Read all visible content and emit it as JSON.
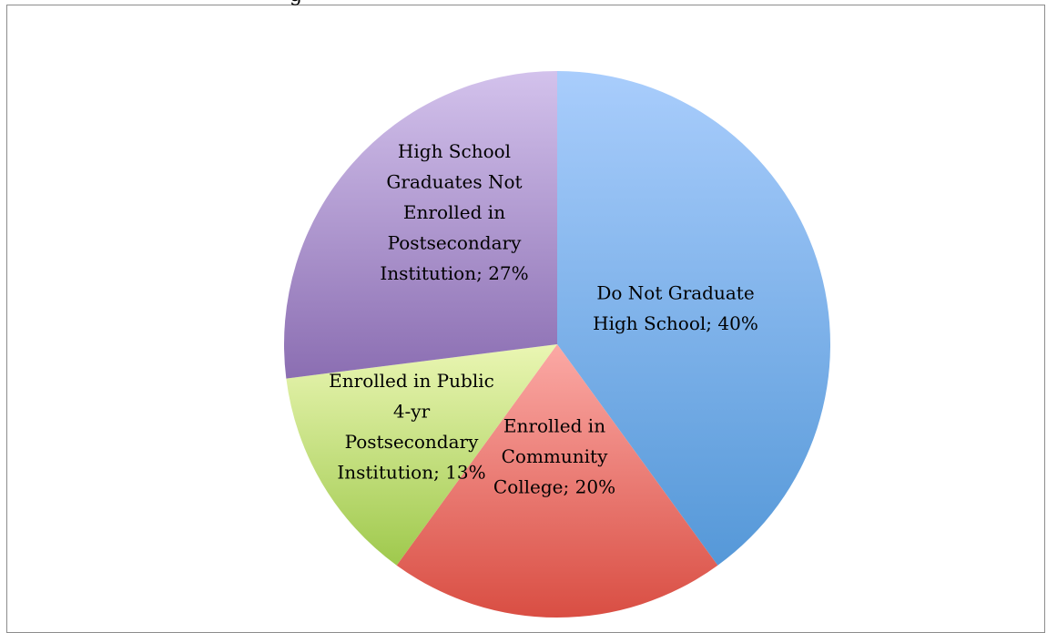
{
  "chart_data": {
    "type": "pie",
    "slices": [
      {
        "label": "Do Not Graduate High School",
        "value": 40,
        "label_text": "Do Not Graduate\nHigh School; 40%",
        "color_light": "#a9cdfc",
        "color_dark": "#5598d8"
      },
      {
        "label": "Enrolled in Community College",
        "value": 20,
        "label_text": "Enrolled in\nCommunity\nCollege; 20%",
        "color_light": "#fba9a5",
        "color_dark": "#d94e43"
      },
      {
        "label": "Enrolled in Public 4-yr Postsecondary Institution",
        "value": 13,
        "label_text": "Enrolled in Public\n4-yr\nPostsecondary\nInstitution; 13%",
        "color_light": "#eaf6b3",
        "color_dark": "#9fc94d"
      },
      {
        "label": "High School Graduates Not Enrolled in Postsecondary Institution",
        "value": 27,
        "label_text": "High School\nGraduates Not\nEnrolled in\nPostsecondary\nInstitution; 27%",
        "color_light": "#d3c2ec",
        "color_dark": "#8b6eb2"
      }
    ],
    "start_angle_deg": 0,
    "direction": "clockwise",
    "legend": "none",
    "title": ""
  }
}
